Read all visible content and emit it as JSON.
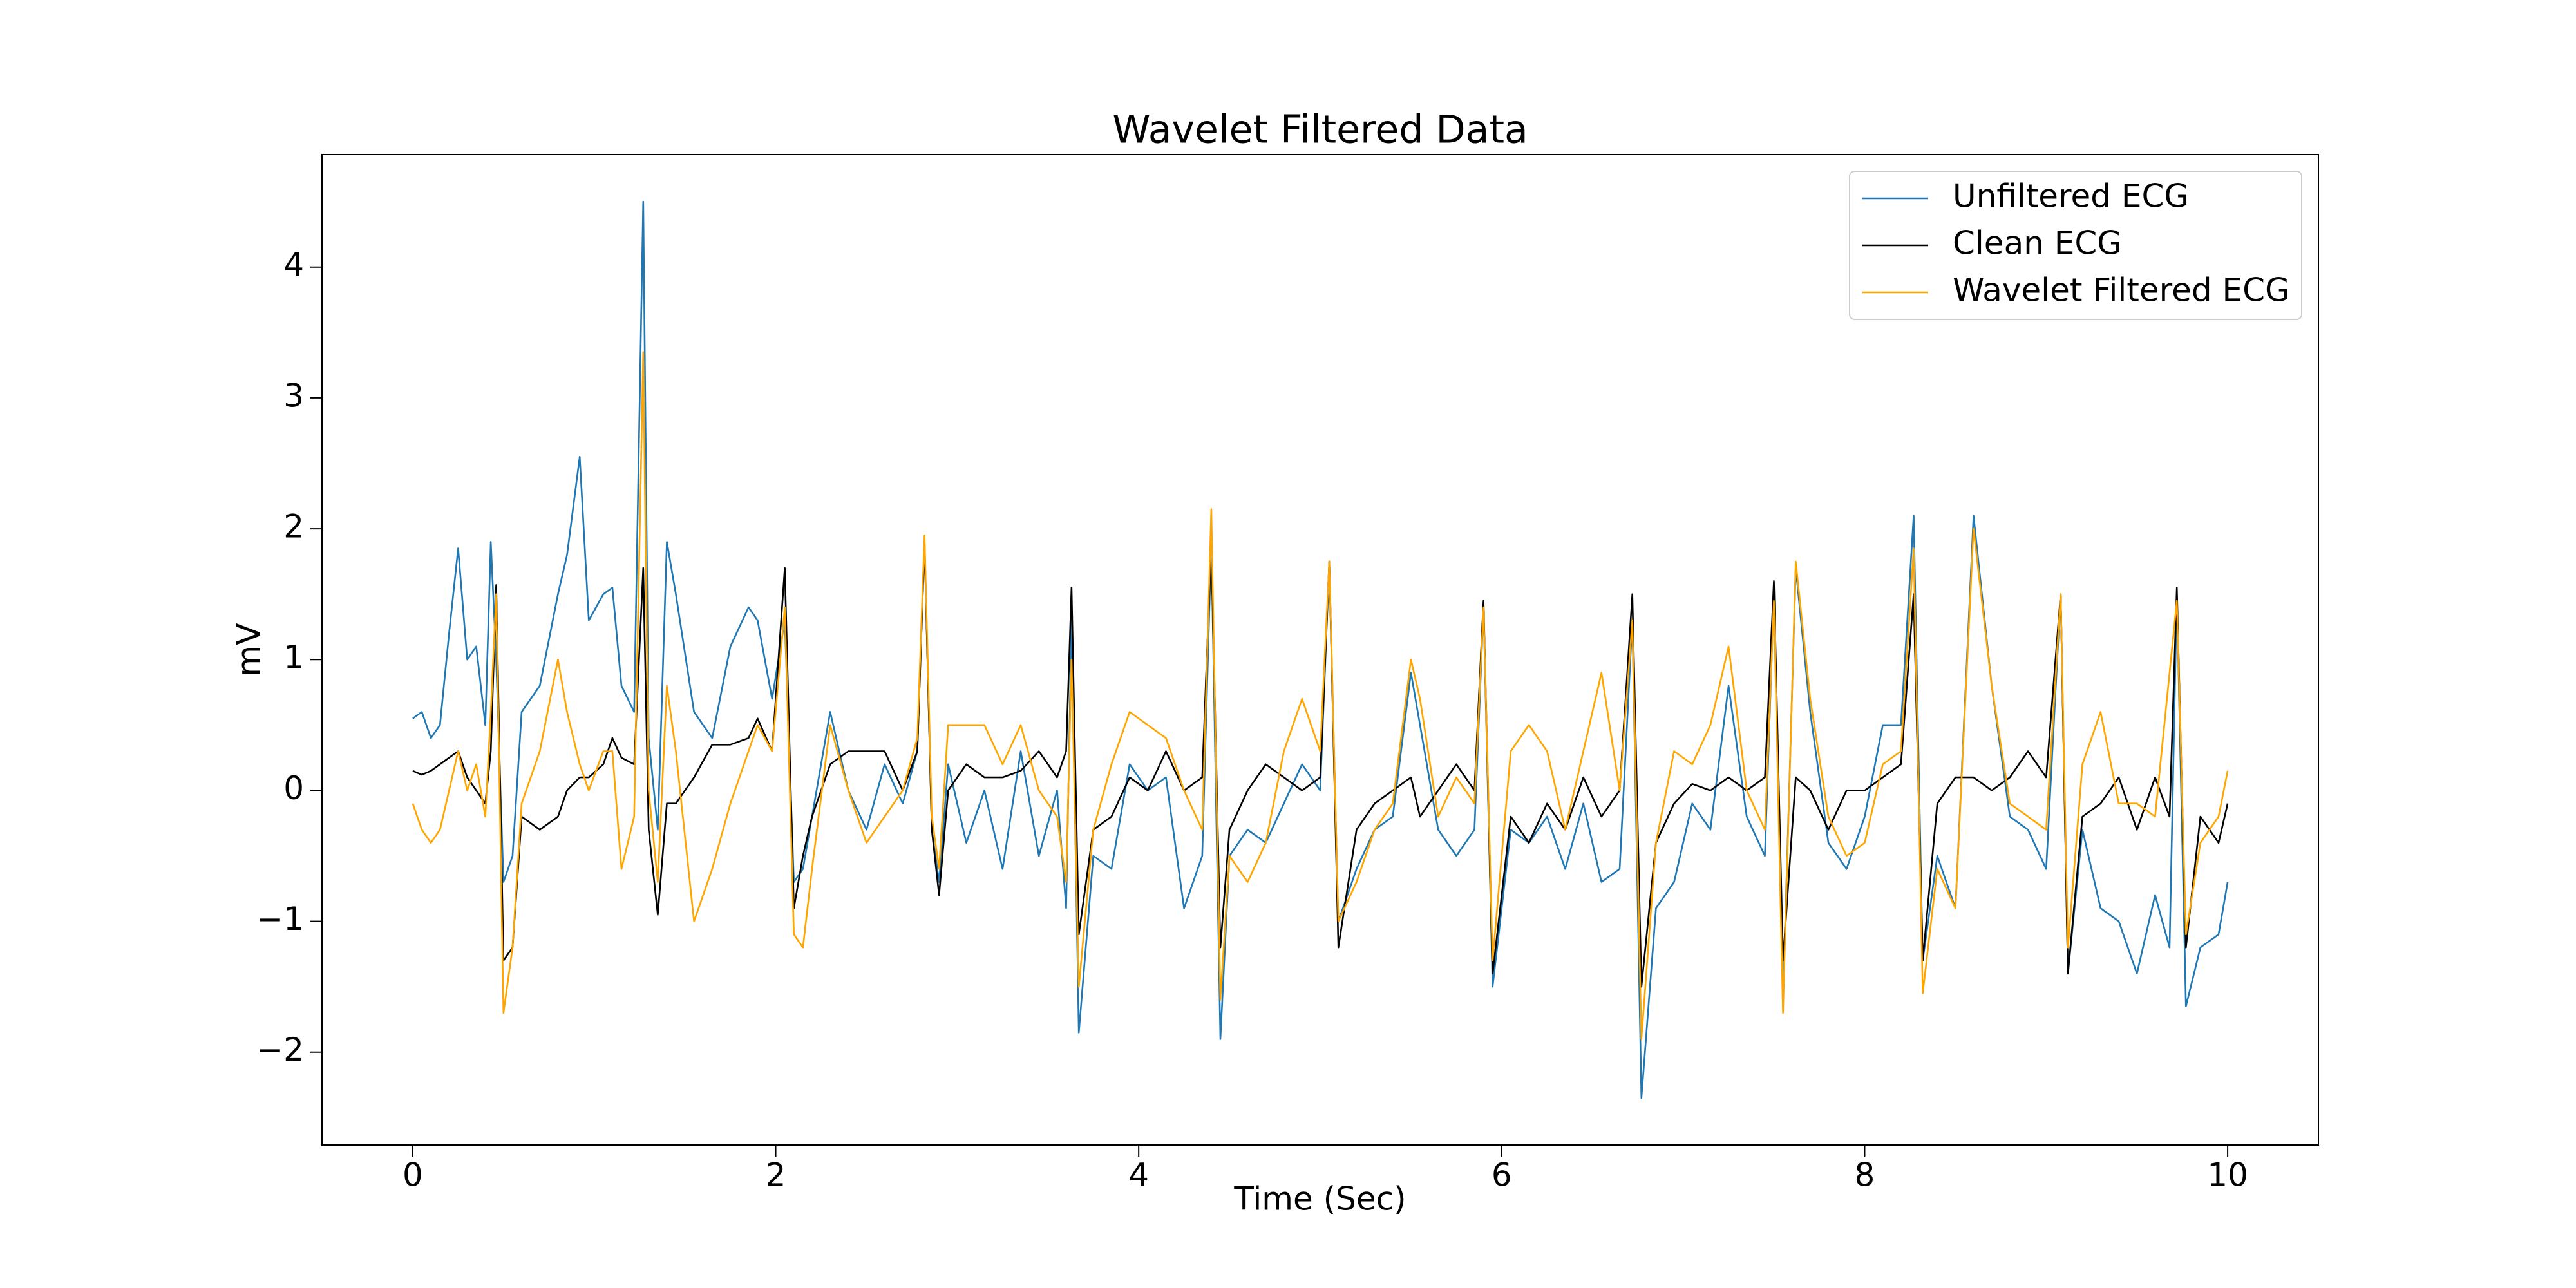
{
  "chart_data": {
    "type": "line",
    "title": "Wavelet Filtered Data",
    "xlabel": "Time (Sec)",
    "ylabel": "mV",
    "x": [
      0,
      0.05,
      0.1,
      0.15,
      0.2,
      0.25,
      0.3,
      0.35,
      0.4,
      0.43,
      0.46,
      0.5,
      0.55,
      0.6,
      0.7,
      0.8,
      0.85,
      0.92,
      0.97,
      1.05,
      1.1,
      1.15,
      1.22,
      1.27,
      1.3,
      1.35,
      1.4,
      1.45,
      1.55,
      1.65,
      1.75,
      1.85,
      1.9,
      1.98,
      2.05,
      2.1,
      2.15,
      2.2,
      2.3,
      2.4,
      2.5,
      2.6,
      2.7,
      2.78,
      2.82,
      2.86,
      2.9,
      2.95,
      3.05,
      3.15,
      3.25,
      3.35,
      3.45,
      3.55,
      3.6,
      3.63,
      3.67,
      3.75,
      3.85,
      3.95,
      4.05,
      4.15,
      4.25,
      4.35,
      4.4,
      4.45,
      4.5,
      4.6,
      4.7,
      4.8,
      4.9,
      5.0,
      5.05,
      5.1,
      5.2,
      5.3,
      5.4,
      5.5,
      5.55,
      5.65,
      5.75,
      5.85,
      5.9,
      5.95,
      6.05,
      6.15,
      6.25,
      6.35,
      6.45,
      6.55,
      6.65,
      6.72,
      6.77,
      6.85,
      6.95,
      7.05,
      7.15,
      7.25,
      7.35,
      7.45,
      7.5,
      7.55,
      7.62,
      7.7,
      7.8,
      7.9,
      8.0,
      8.1,
      8.2,
      8.27,
      8.32,
      8.4,
      8.5,
      8.6,
      8.7,
      8.8,
      8.9,
      9.0,
      9.08,
      9.12,
      9.2,
      9.3,
      9.4,
      9.5,
      9.6,
      9.68,
      9.72,
      9.77,
      9.85,
      9.95,
      10.0
    ],
    "series": [
      {
        "name": "Unfiltered ECG",
        "color": "#1f77b4",
        "values": [
          0.55,
          0.6,
          0.4,
          0.5,
          1.2,
          1.85,
          1.0,
          1.1,
          0.5,
          1.9,
          1.0,
          -0.7,
          -0.5,
          0.6,
          0.8,
          1.5,
          1.8,
          2.55,
          1.3,
          1.5,
          1.55,
          0.8,
          0.6,
          4.5,
          0.4,
          -0.3,
          1.9,
          1.5,
          0.6,
          0.4,
          1.1,
          1.4,
          1.3,
          0.7,
          1.3,
          -0.7,
          -0.6,
          -0.2,
          0.6,
          0.0,
          -0.3,
          0.2,
          -0.1,
          0.3,
          1.9,
          -0.3,
          -0.7,
          0.2,
          -0.4,
          0.0,
          -0.6,
          0.3,
          -0.5,
          0.0,
          -0.9,
          1.3,
          -1.85,
          -0.5,
          -0.6,
          0.2,
          0.0,
          0.1,
          -0.9,
          -0.5,
          1.9,
          -1.9,
          -0.5,
          -0.3,
          -0.4,
          -0.1,
          0.2,
          0.0,
          1.75,
          -1.0,
          -0.6,
          -0.3,
          -0.2,
          0.9,
          0.5,
          -0.3,
          -0.5,
          -0.3,
          1.4,
          -1.5,
          -0.3,
          -0.4,
          -0.2,
          -0.6,
          -0.1,
          -0.7,
          -0.6,
          1.3,
          -2.35,
          -0.9,
          -0.7,
          -0.1,
          -0.3,
          0.8,
          -0.2,
          -0.5,
          1.5,
          -1.6,
          1.7,
          0.6,
          -0.4,
          -0.6,
          -0.2,
          0.5,
          0.5,
          2.1,
          -1.3,
          -0.5,
          -0.9,
          2.1,
          0.8,
          -0.2,
          -0.3,
          -0.6,
          1.5,
          -1.4,
          -0.3,
          -0.9,
          -1.0,
          -1.4,
          -0.8,
          -1.2,
          1.5,
          -1.65,
          -1.2,
          -1.1,
          -0.7
        ]
      },
      {
        "name": "Clean ECG",
        "color": "#000000",
        "values": [
          0.15,
          0.12,
          0.15,
          0.2,
          0.25,
          0.3,
          0.1,
          0.0,
          -0.1,
          0.3,
          1.57,
          -1.3,
          -1.2,
          -0.2,
          -0.3,
          -0.2,
          0.0,
          0.1,
          0.1,
          0.2,
          0.4,
          0.25,
          0.2,
          1.7,
          -0.3,
          -0.95,
          -0.1,
          -0.1,
          0.1,
          0.35,
          0.35,
          0.4,
          0.55,
          0.3,
          1.7,
          -0.9,
          -0.5,
          -0.2,
          0.2,
          0.3,
          0.3,
          0.3,
          0.0,
          0.3,
          1.9,
          -0.3,
          -0.8,
          0.0,
          0.2,
          0.1,
          0.1,
          0.15,
          0.3,
          0.1,
          0.3,
          1.55,
          -1.1,
          -0.3,
          -0.2,
          0.1,
          0.0,
          0.3,
          0.0,
          0.1,
          1.9,
          -1.2,
          -0.3,
          0.0,
          0.2,
          0.1,
          0.0,
          0.1,
          1.75,
          -1.2,
          -0.3,
          -0.1,
          0.0,
          0.1,
          -0.2,
          0.0,
          0.2,
          0.0,
          1.45,
          -1.4,
          -0.2,
          -0.4,
          -0.1,
          -0.3,
          0.1,
          -0.2,
          0.0,
          1.5,
          -1.5,
          -0.4,
          -0.1,
          0.05,
          0.0,
          0.1,
          0.0,
          0.1,
          1.6,
          -1.3,
          0.1,
          0.0,
          -0.3,
          0.0,
          0.0,
          0.1,
          0.2,
          1.5,
          -1.3,
          -0.1,
          0.1,
          0.1,
          0.0,
          0.1,
          0.3,
          0.1,
          1.5,
          -1.4,
          -0.2,
          -0.1,
          0.1,
          -0.3,
          0.1,
          -0.2,
          1.55,
          -1.2,
          -0.2,
          -0.4,
          -0.1
        ]
      },
      {
        "name": "Wavelet Filtered ECG",
        "color": "#ffa500",
        "values": [
          -0.1,
          -0.3,
          -0.4,
          -0.3,
          0.0,
          0.3,
          0.0,
          0.2,
          -0.2,
          0.6,
          1.5,
          -1.7,
          -1.2,
          -0.1,
          0.3,
          1.0,
          0.6,
          0.2,
          0.0,
          0.3,
          0.3,
          -0.6,
          -0.2,
          3.35,
          0.0,
          -0.7,
          0.8,
          0.3,
          -1.0,
          -0.6,
          -0.1,
          0.3,
          0.5,
          0.3,
          1.4,
          -1.1,
          -1.2,
          -0.6,
          0.5,
          0.0,
          -0.4,
          -0.2,
          0.0,
          0.4,
          1.95,
          -0.2,
          -0.6,
          0.5,
          0.5,
          0.5,
          0.2,
          0.5,
          0.0,
          -0.2,
          -0.7,
          1.0,
          -1.5,
          -0.3,
          0.2,
          0.6,
          0.5,
          0.4,
          0.0,
          -0.3,
          2.15,
          -1.6,
          -0.5,
          -0.7,
          -0.4,
          0.3,
          0.7,
          0.3,
          1.75,
          -1.0,
          -0.7,
          -0.3,
          -0.1,
          1.0,
          0.7,
          -0.2,
          0.1,
          -0.1,
          1.4,
          -1.3,
          0.3,
          0.5,
          0.3,
          -0.3,
          0.3,
          0.9,
          0.0,
          1.3,
          -1.9,
          -0.4,
          0.3,
          0.2,
          0.5,
          1.1,
          0.0,
          -0.3,
          1.45,
          -1.7,
          1.75,
          0.7,
          -0.2,
          -0.5,
          -0.4,
          0.2,
          0.3,
          1.85,
          -1.55,
          -0.6,
          -0.9,
          2.0,
          0.8,
          -0.1,
          -0.2,
          -0.3,
          1.5,
          -1.2,
          0.2,
          0.6,
          -0.1,
          -0.1,
          -0.2,
          0.9,
          1.45,
          -1.1,
          -0.4,
          -0.2,
          0.15
        ]
      }
    ],
    "xlim": [
      -0.5,
      10.5
    ],
    "ylim": [
      -2.71,
      4.86
    ],
    "xticks": [
      0,
      2,
      4,
      6,
      8,
      10
    ],
    "yticks": [
      {
        "value": -2,
        "label": "−2"
      },
      {
        "value": -1,
        "label": "−1"
      },
      0,
      1,
      2,
      3,
      4
    ],
    "legend": "upper right"
  }
}
